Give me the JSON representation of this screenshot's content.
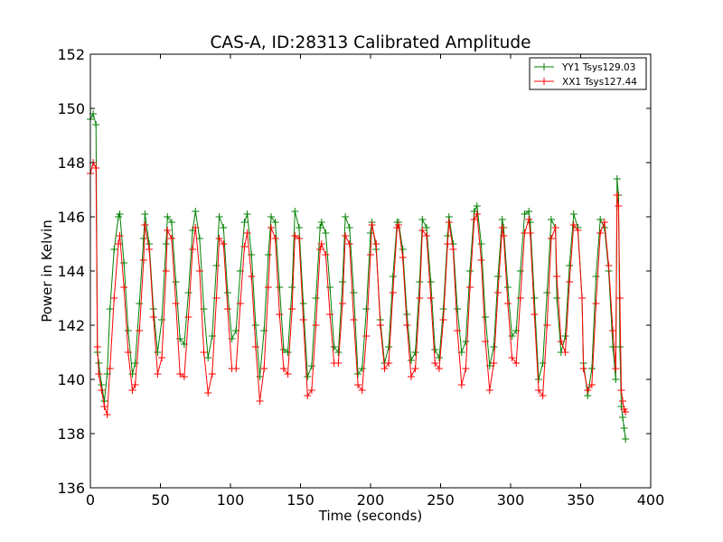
{
  "chart_data": {
    "type": "line",
    "title": "CAS-A, ID:28313 Calibrated Amplitude",
    "xlabel": "Time (seconds)",
    "ylabel": "Power in Kelvin",
    "xlim": [
      0,
      400
    ],
    "ylim": [
      136,
      152
    ],
    "xticks": [
      0,
      50,
      100,
      150,
      200,
      250,
      300,
      350,
      400
    ],
    "yticks": [
      136,
      138,
      140,
      142,
      144,
      146,
      148,
      150,
      152
    ],
    "grid": false,
    "legend_position": "top-right",
    "marker": "+",
    "series": [
      {
        "name": "YY1 Tsys129.03",
        "color": "#008000",
        "x": [
          0,
          2,
          4,
          5,
          6,
          8,
          10,
          12,
          14,
          17,
          20,
          21,
          24,
          27,
          30,
          32,
          35,
          38,
          39,
          42,
          45,
          48,
          51,
          54,
          55,
          58,
          61,
          64,
          67,
          70,
          73,
          75,
          78,
          81,
          84,
          87,
          90,
          92,
          95,
          98,
          101,
          104,
          107,
          110,
          112,
          115,
          118,
          121,
          124,
          127,
          129,
          132,
          135,
          138,
          141,
          144,
          146,
          149,
          152,
          155,
          158,
          161,
          164,
          165,
          168,
          171,
          174,
          177,
          180,
          182,
          185,
          188,
          191,
          194,
          197,
          200,
          201,
          204,
          207,
          210,
          213,
          216,
          219,
          220,
          223,
          226,
          229,
          232,
          235,
          237,
          240,
          243,
          246,
          249,
          252,
          255,
          256,
          259,
          262,
          265,
          268,
          271,
          274,
          276,
          279,
          282,
          285,
          288,
          291,
          294,
          295,
          298,
          301,
          304,
          307,
          310,
          313,
          314,
          317,
          320,
          323,
          326,
          329,
          332,
          333,
          336,
          339,
          342,
          345,
          348,
          351,
          352,
          355,
          358,
          361,
          364,
          367,
          370,
          373,
          375,
          376,
          377,
          378,
          379,
          380,
          381,
          382
        ],
        "y": [
          149.6,
          149.8,
          149.4,
          141.0,
          140.6,
          139.8,
          139.2,
          140.2,
          142.6,
          144.8,
          146.0,
          146.1,
          144.3,
          141.8,
          140.2,
          140.6,
          142.8,
          145.2,
          146.1,
          145.0,
          142.6,
          141.0,
          142.2,
          145.0,
          146.0,
          145.8,
          143.6,
          141.5,
          141.3,
          143.2,
          145.5,
          146.2,
          145.2,
          142.6,
          140.8,
          141.6,
          144.2,
          146.0,
          145.6,
          143.2,
          141.5,
          141.8,
          144.0,
          145.8,
          146.1,
          144.6,
          142.0,
          140.1,
          141.8,
          144.6,
          146.0,
          145.8,
          143.4,
          141.1,
          141.0,
          143.4,
          146.2,
          145.6,
          142.8,
          140.1,
          140.5,
          143.0,
          145.6,
          145.8,
          145.4,
          143.4,
          141.2,
          141.0,
          143.6,
          146.0,
          145.6,
          143.2,
          140.2,
          140.4,
          142.6,
          145.4,
          145.8,
          144.8,
          142.2,
          140.6,
          141.2,
          143.8,
          145.8,
          145.8,
          144.8,
          142.4,
          140.7,
          141.0,
          143.6,
          145.9,
          145.6,
          143.6,
          141.1,
          140.8,
          142.6,
          145.3,
          146.0,
          145.0,
          142.6,
          141.0,
          141.4,
          144.0,
          146.2,
          146.4,
          145.0,
          142.3,
          140.5,
          141.2,
          143.8,
          145.9,
          145.6,
          143.4,
          141.6,
          141.8,
          144.0,
          146.1,
          146.2,
          145.8,
          143.0,
          140.0,
          140.6,
          143.2,
          145.9,
          145.6,
          143.0,
          141.0,
          141.6,
          144.2,
          146.1,
          145.6,
          143.0,
          140.6,
          139.4,
          140.4,
          143.8,
          145.9,
          145.6,
          144.0,
          141.2,
          140.0,
          147.4,
          146.8,
          141.2,
          139.0,
          138.6,
          138.2,
          137.8
        ]
      },
      {
        "name": "XX1 Tsys127.44",
        "color": "#ff0000",
        "x": [
          0,
          2,
          4,
          5,
          6,
          8,
          10,
          12,
          14,
          17,
          20,
          21,
          24,
          27,
          30,
          32,
          35,
          38,
          39,
          42,
          45,
          48,
          51,
          54,
          55,
          58,
          61,
          64,
          67,
          70,
          73,
          75,
          78,
          81,
          84,
          87,
          90,
          92,
          95,
          98,
          101,
          104,
          107,
          110,
          112,
          115,
          118,
          121,
          124,
          127,
          129,
          132,
          135,
          138,
          141,
          144,
          146,
          149,
          152,
          155,
          158,
          161,
          164,
          165,
          168,
          171,
          174,
          177,
          180,
          182,
          185,
          188,
          191,
          194,
          197,
          200,
          201,
          204,
          207,
          210,
          213,
          216,
          219,
          220,
          223,
          226,
          229,
          232,
          235,
          237,
          240,
          243,
          246,
          249,
          252,
          255,
          256,
          259,
          262,
          265,
          268,
          271,
          274,
          276,
          279,
          282,
          285,
          288,
          291,
          294,
          295,
          298,
          301,
          304,
          307,
          310,
          313,
          314,
          317,
          320,
          323,
          326,
          329,
          332,
          333,
          336,
          339,
          342,
          345,
          348,
          351,
          352,
          355,
          358,
          361,
          364,
          367,
          370,
          373,
          375,
          376,
          377,
          378,
          379,
          380,
          381,
          382
        ],
        "y": [
          147.6,
          148.0,
          147.8,
          141.2,
          140.2,
          139.6,
          139.0,
          138.7,
          140.4,
          143.0,
          145.0,
          145.3,
          143.4,
          141.0,
          139.6,
          139.8,
          141.8,
          144.4,
          145.7,
          144.8,
          142.3,
          140.2,
          140.8,
          144.0,
          145.5,
          145.2,
          142.8,
          140.2,
          140.1,
          142.3,
          144.8,
          145.6,
          144.0,
          141.0,
          139.5,
          140.2,
          143.0,
          145.2,
          145.0,
          142.6,
          140.4,
          140.4,
          142.8,
          144.9,
          145.4,
          143.8,
          141.2,
          139.2,
          140.4,
          143.4,
          145.6,
          145.2,
          142.4,
          140.4,
          140.2,
          142.6,
          145.3,
          145.2,
          142.2,
          139.4,
          139.6,
          142.0,
          144.8,
          145.0,
          144.6,
          142.4,
          140.6,
          140.6,
          142.8,
          145.3,
          145.0,
          142.2,
          139.8,
          139.6,
          141.6,
          144.6,
          145.7,
          145.0,
          142.0,
          140.4,
          140.6,
          143.2,
          145.6,
          145.7,
          144.5,
          142.0,
          140.1,
          140.4,
          143.0,
          145.5,
          145.3,
          143.0,
          140.6,
          140.4,
          142.2,
          145.0,
          145.8,
          144.8,
          141.8,
          139.8,
          140.4,
          143.4,
          145.9,
          146.1,
          144.4,
          141.4,
          139.6,
          140.6,
          143.2,
          145.6,
          145.3,
          142.8,
          140.8,
          140.6,
          143.0,
          145.4,
          145.9,
          145.4,
          142.4,
          139.6,
          139.4,
          142.0,
          145.2,
          145.6,
          143.8,
          141.4,
          141.0,
          143.6,
          145.7,
          145.5,
          143.0,
          140.4,
          139.6,
          139.8,
          142.8,
          145.4,
          145.8,
          144.2,
          141.8,
          140.4,
          146.8,
          146.4,
          143.0,
          139.6,
          139.2,
          138.9,
          138.8
        ]
      }
    ]
  }
}
